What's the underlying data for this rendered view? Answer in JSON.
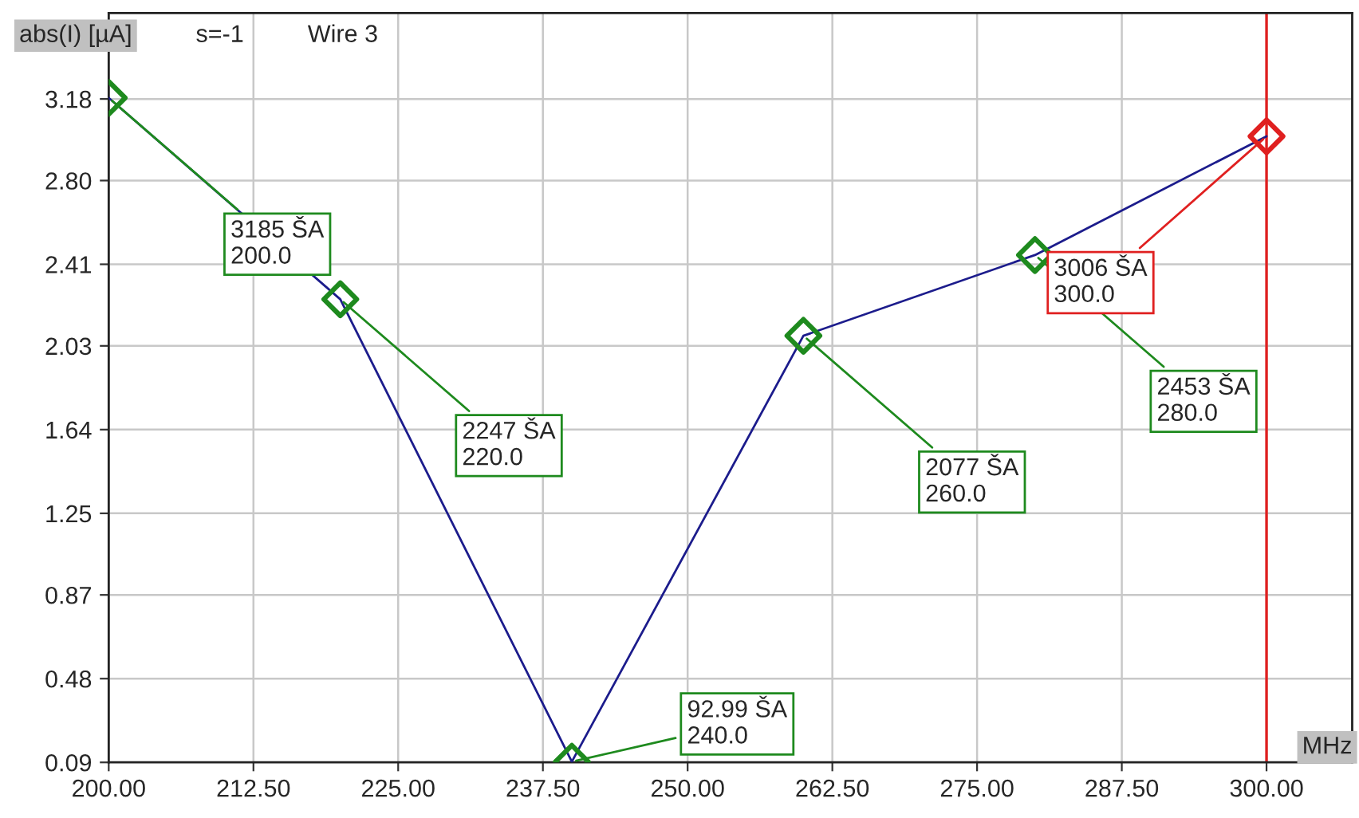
{
  "chart_data": {
    "type": "line",
    "ylabel": "abs(I) [µA]",
    "xlabel": "MHz",
    "x": [
      200,
      220,
      240,
      260,
      280,
      300
    ],
    "series": [
      {
        "color": "#1c1c8c",
        "colors": [
          "#1e8a1e",
          "#1e8a1e",
          "#1e8a1e",
          "#1e8a1e",
          "#1e8a1e",
          "#e02020"
        ],
        "values": [
          3.185,
          2.247,
          0.09299,
          2.077,
          2.453,
          3.006
        ]
      }
    ],
    "marker": "diamond",
    "line_style": "solid",
    "xlim": [
      200,
      307.4
    ],
    "ylim": [
      0.09,
      3.58
    ],
    "xticks": [
      {
        "value": 200,
        "label": "200.00"
      },
      {
        "value": 212.5,
        "label": "212.50"
      },
      {
        "value": 225,
        "label": "225.00"
      },
      {
        "value": 237.5,
        "label": "237.50"
      },
      {
        "value": 250,
        "label": "250.00"
      },
      {
        "value": 262.5,
        "label": "262.50"
      },
      {
        "value": 275,
        "label": "275.00"
      },
      {
        "value": 287.5,
        "label": "287.50"
      },
      {
        "value": 300,
        "label": "300.00"
      }
    ],
    "yticks": [
      0.09,
      0.48,
      0.87,
      1.25,
      1.64,
      2.03,
      2.41,
      {
        "value": 2.8,
        "label": "2.80"
      },
      3.18
    ],
    "grid": true,
    "ref_lines": [
      {
        "axis": "x",
        "value": 300,
        "color": "#e02020"
      }
    ],
    "annotations": [
      "s=-1",
      "Wire 3",
      {
        "text": "3185 ŠA\n200.0",
        "x": 200,
        "y": 3.185
      },
      {
        "text": "2247 ŠA\n220.0",
        "x": 220,
        "y": 2.247
      },
      {
        "text": "92.99 ŠA\n240.0",
        "x": 240,
        "y": 0.09299
      },
      {
        "text": "2077 ŠA\n260.0",
        "x": 260,
        "y": 2.077
      },
      {
        "text": "2453 ŠA\n280.0",
        "x": 280,
        "y": 2.453
      },
      {
        "text": "3006 ŠA\n300.0",
        "x": 300,
        "y": 3.006
      }
    ]
  }
}
